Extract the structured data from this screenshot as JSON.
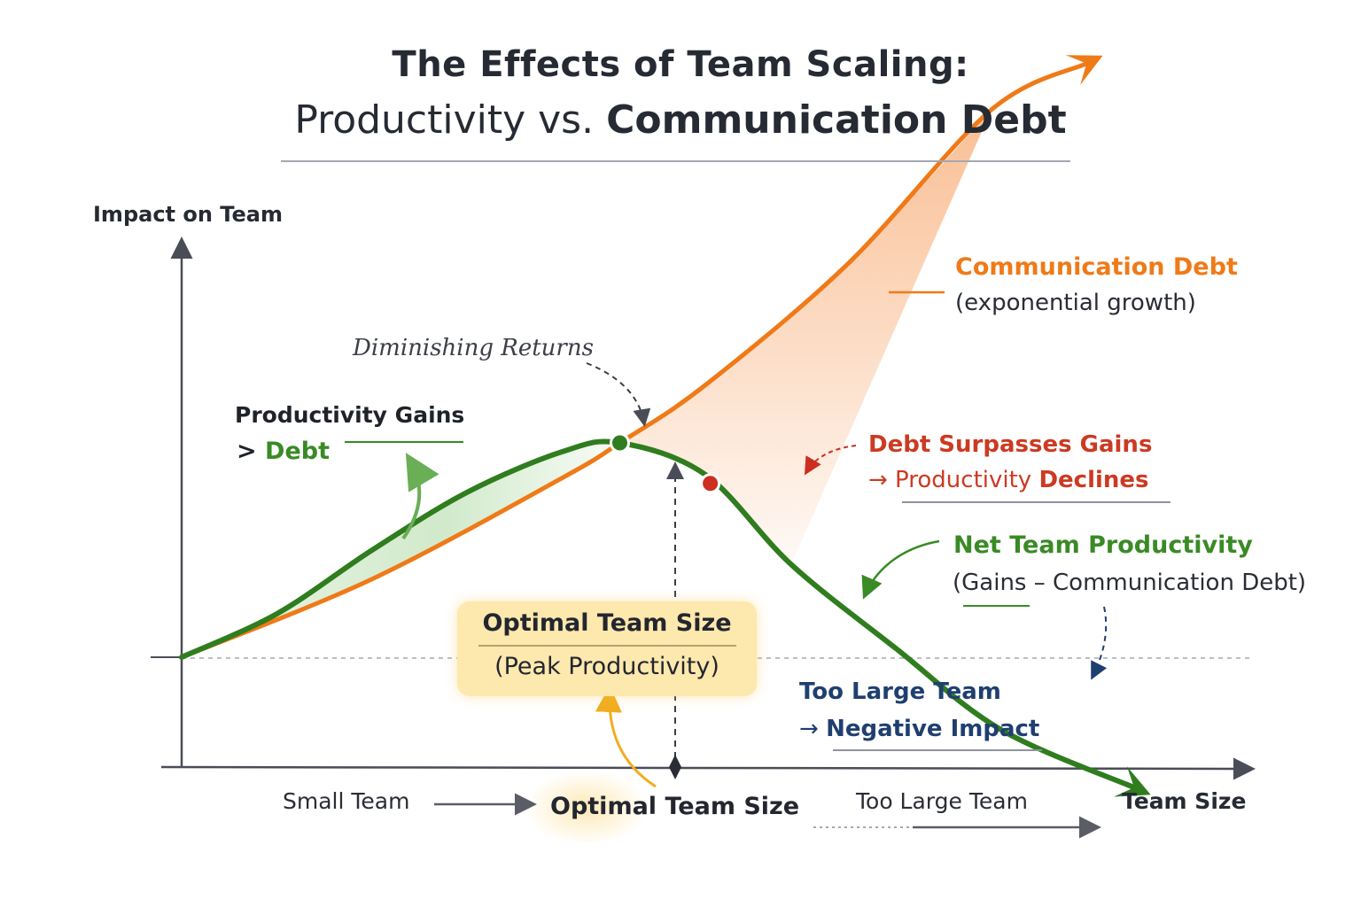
{
  "title": {
    "line1": "The Effects of Team Scaling:",
    "line2_plain": "Productivity vs. ",
    "line2_bold": "Communication Debt"
  },
  "axes": {
    "y_label": "Impact on Team",
    "x_label": "Team Size",
    "x_regions": [
      "Small Team",
      "Optimal Team Size",
      "Too Large Team"
    ]
  },
  "annotations": {
    "communication_debt_title": "Communication Debt",
    "communication_debt_sub": "(exponential growth)",
    "diminishing_returns": "Diminishing Returns",
    "productivity_gains_line1": "Productivity Gains",
    "productivity_gains_prefix": "> ",
    "productivity_gains_debt": "Debt",
    "debt_surpasses_line1": "Debt Surpasses Gains",
    "debt_surpasses_prefix": "→ Productivity ",
    "debt_surpasses_bold": "Declines",
    "net_productivity_title": "Net Team Productivity",
    "net_productivity_sub": "(Gains – Communication Debt)",
    "too_large_line1": "Too Large Team",
    "too_large_prefix": "→ ",
    "too_large_bold": "Negative Impact",
    "optimal_box_title": "Optimal Team Size",
    "optimal_box_sub": "(Peak Productivity)"
  },
  "colors": {
    "communication_debt": "#ef7a18",
    "net_productivity": "#2f7d1e",
    "decline_marker": "#cc2e20",
    "too_large": "#1f3f70",
    "axis": "#4a4d57",
    "optimal_highlight": "#fde8ad"
  },
  "chart_data": {
    "type": "line",
    "title": "The Effects of Team Scaling: Productivity vs. Communication Debt",
    "xlabel": "Team Size",
    "ylabel": "Impact on Team",
    "ylim": [
      -1,
      2.05
    ],
    "xlim": [
      0,
      1
    ],
    "grid": false,
    "baseline_y": 0,
    "series": [
      {
        "name": "Communication Debt",
        "x": [
          0,
          0.2,
          0.4,
          0.46,
          0.55,
          0.7,
          0.85,
          0.95
        ],
        "y": [
          0,
          0.27,
          0.62,
          0.74,
          0.94,
          1.36,
          1.89,
          2.05
        ]
      },
      {
        "name": "Net Team Productivity",
        "x": [
          0,
          0.1,
          0.2,
          0.3,
          0.4,
          0.46,
          0.55,
          0.64,
          0.75,
          0.86,
          1.0
        ],
        "y": [
          0,
          0.15,
          0.37,
          0.57,
          0.71,
          0.74,
          0.63,
          0.32,
          0.03,
          -0.25,
          -0.45
        ]
      }
    ],
    "markers": [
      {
        "label": "Optimal Team Size",
        "x": 0.46,
        "y": 0.74
      },
      {
        "label": "Debt Surpasses Gains",
        "x": 0.555,
        "y": 0.6
      }
    ]
  }
}
